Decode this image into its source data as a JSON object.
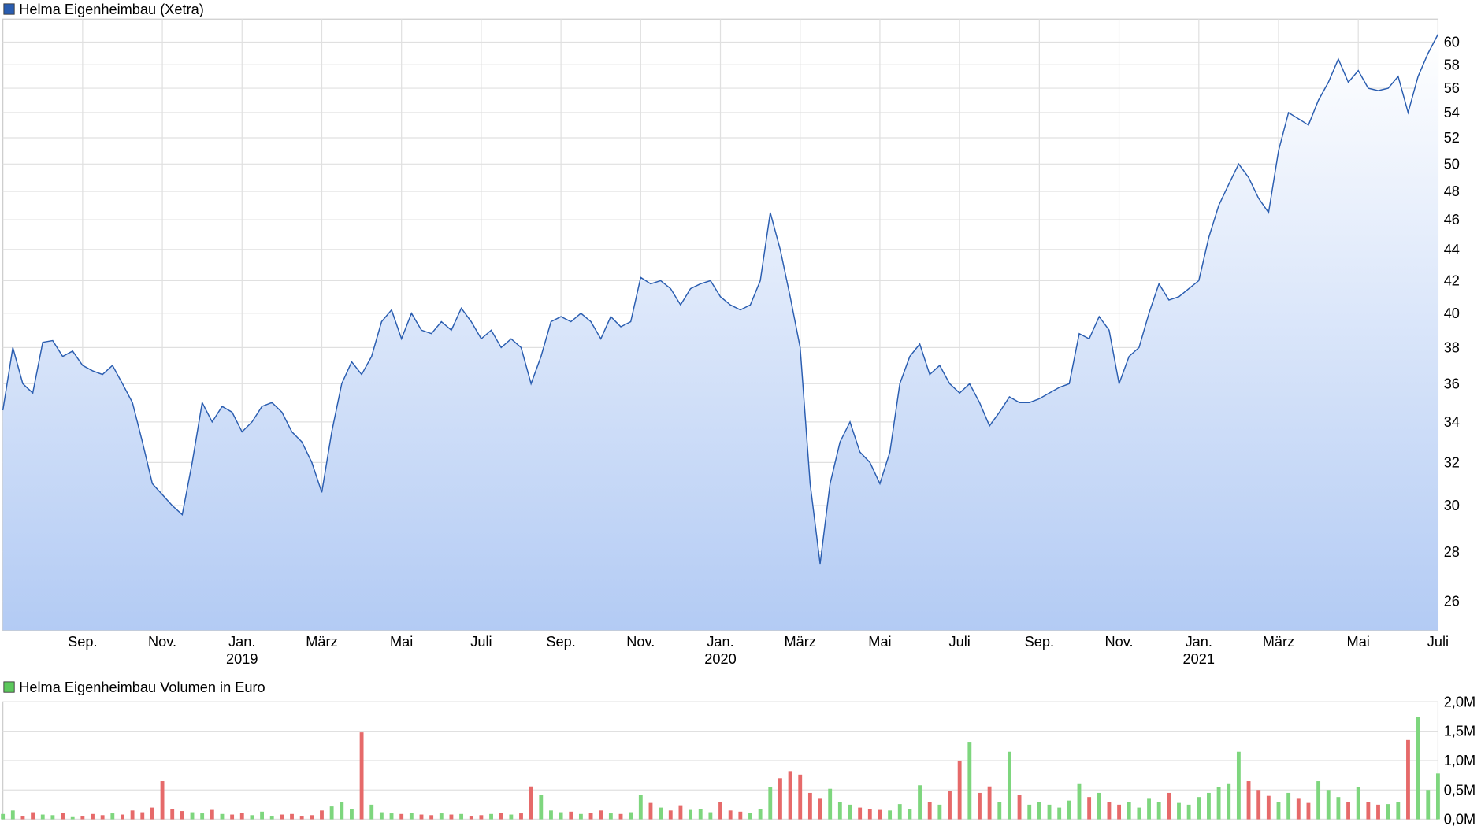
{
  "chart_data": [
    {
      "type": "area",
      "title": "Helma Eigenheimbau (Xetra)",
      "color": "#2a5db0",
      "log_scale": true,
      "grid": true,
      "x": [
        "2018-07",
        "2018-07",
        "2018-07",
        "2018-07",
        "2018-08",
        "2018-08",
        "2018-08",
        "2018-08",
        "2018-09",
        "2018-09",
        "2018-09",
        "2018-09",
        "2018-10",
        "2018-10",
        "2018-10",
        "2018-10",
        "2018-11",
        "2018-11",
        "2018-11",
        "2018-11",
        "2018-12",
        "2018-12",
        "2018-12",
        "2018-12",
        "2019-01",
        "2019-01",
        "2019-01",
        "2019-01",
        "2019-02",
        "2019-02",
        "2019-02",
        "2019-02",
        "2019-03",
        "2019-03",
        "2019-03",
        "2019-03",
        "2019-04",
        "2019-04",
        "2019-04",
        "2019-04",
        "2019-05",
        "2019-05",
        "2019-05",
        "2019-05",
        "2019-06",
        "2019-06",
        "2019-06",
        "2019-06",
        "2019-07",
        "2019-07",
        "2019-07",
        "2019-07",
        "2019-08",
        "2019-08",
        "2019-08",
        "2019-08",
        "2019-09",
        "2019-09",
        "2019-09",
        "2019-09",
        "2019-10",
        "2019-10",
        "2019-10",
        "2019-10",
        "2019-11",
        "2019-11",
        "2019-11",
        "2019-11",
        "2019-12",
        "2019-12",
        "2019-12",
        "2019-12",
        "2020-01",
        "2020-01",
        "2020-01",
        "2020-01",
        "2020-02",
        "2020-02",
        "2020-02",
        "2020-02",
        "2020-03",
        "2020-03",
        "2020-03",
        "2020-03",
        "2020-04",
        "2020-04",
        "2020-04",
        "2020-04",
        "2020-05",
        "2020-05",
        "2020-05",
        "2020-05",
        "2020-06",
        "2020-06",
        "2020-06",
        "2020-06",
        "2020-07",
        "2020-07",
        "2020-07",
        "2020-07",
        "2020-08",
        "2020-08",
        "2020-08",
        "2020-08",
        "2020-09",
        "2020-09",
        "2020-09",
        "2020-09",
        "2020-10",
        "2020-10",
        "2020-10",
        "2020-10",
        "2020-11",
        "2020-11",
        "2020-11",
        "2020-11",
        "2020-12",
        "2020-12",
        "2020-12",
        "2020-12",
        "2021-01",
        "2021-01",
        "2021-01",
        "2021-01",
        "2021-02",
        "2021-02",
        "2021-02",
        "2021-02",
        "2021-03",
        "2021-03",
        "2021-03",
        "2021-03",
        "2021-04",
        "2021-04",
        "2021-04",
        "2021-04",
        "2021-05",
        "2021-05",
        "2021-05",
        "2021-05",
        "2021-06",
        "2021-06",
        "2021-06",
        "2021-06",
        "2021-07"
      ],
      "values": [
        34.6,
        38,
        36,
        35.5,
        38.3,
        38.4,
        37.5,
        37.8,
        37,
        36.7,
        36.5,
        37,
        36,
        35,
        33,
        31,
        30.5,
        30,
        29.6,
        32,
        35,
        34,
        34.8,
        34.5,
        33.5,
        34,
        34.8,
        35,
        34.5,
        33.5,
        33,
        32,
        30.6,
        33.5,
        36,
        37.2,
        36.5,
        37.5,
        39.5,
        40.2,
        38.5,
        40,
        39,
        38.8,
        39.5,
        39,
        40.3,
        39.5,
        38.5,
        39,
        38,
        38.5,
        38,
        36,
        37.5,
        39.5,
        39.8,
        39.5,
        40,
        39.5,
        38.5,
        39.8,
        39.2,
        39.5,
        42.2,
        41.8,
        42,
        41.5,
        40.5,
        41.5,
        41.8,
        42,
        41,
        40.5,
        40.2,
        40.5,
        42,
        46.5,
        44,
        41,
        38,
        31,
        27.5,
        31,
        33,
        34,
        32.5,
        32,
        31,
        32.5,
        36,
        37.5,
        38.2,
        36.5,
        37,
        36,
        35.5,
        36,
        35,
        33.8,
        34.5,
        35.3,
        35,
        35,
        35.2,
        35.5,
        35.8,
        36,
        38.8,
        38.5,
        39.8,
        39,
        36,
        37.5,
        38,
        40,
        41.8,
        40.8,
        41,
        41.5,
        42,
        44.8,
        47,
        48.5,
        50,
        49,
        47.5,
        46.5,
        51,
        54,
        53.5,
        53,
        55,
        56.5,
        58.5,
        56.5,
        57.5,
        56,
        55.8,
        56,
        57,
        54,
        57,
        59,
        60.7
      ],
      "ylim": [
        24.9,
        62.1
      ],
      "yticks": [
        26,
        28,
        30,
        32,
        34,
        36,
        38,
        40,
        42,
        44,
        46,
        48,
        50,
        52,
        54,
        56,
        58,
        60
      ],
      "xticks": [
        {
          "value": "2018-09",
          "label": "Sep."
        },
        {
          "value": "2018-11",
          "label": "Nov."
        },
        {
          "value": "2019-01",
          "label": "Jan."
        },
        {
          "value": "2019-03",
          "label": "März"
        },
        {
          "value": "2019-05",
          "label": "Mai"
        },
        {
          "value": "2019-07",
          "label": "Juli"
        },
        {
          "value": "2019-09",
          "label": "Sep."
        },
        {
          "value": "2019-11",
          "label": "Nov."
        },
        {
          "value": "2020-01",
          "label": "Jan."
        },
        {
          "value": "2020-03",
          "label": "März"
        },
        {
          "value": "2020-05",
          "label": "Mai"
        },
        {
          "value": "2020-07",
          "label": "Juli"
        },
        {
          "value": "2020-09",
          "label": "Sep."
        },
        {
          "value": "2020-11",
          "label": "Nov."
        },
        {
          "value": "2021-01",
          "label": "Jan."
        },
        {
          "value": "2021-03",
          "label": "März"
        },
        {
          "value": "2021-05",
          "label": "Mai"
        },
        {
          "value": "2021-07",
          "label": "Juli"
        }
      ],
      "year_labels": [
        {
          "value": "2019-01",
          "label": "2019"
        },
        {
          "value": "2020-01",
          "label": "2020"
        },
        {
          "value": "2021-01",
          "label": "2021"
        }
      ]
    },
    {
      "type": "bar",
      "title": "Helma Eigenheimbau Volumen in Euro",
      "color": "#5cc85c",
      "up_color": "#7ed67e",
      "down_color": "#e66a6a",
      "grid": true,
      "x": [
        "2018-07",
        "2018-07",
        "2018-07",
        "2018-07",
        "2018-08",
        "2018-08",
        "2018-08",
        "2018-08",
        "2018-09",
        "2018-09",
        "2018-09",
        "2018-09",
        "2018-10",
        "2018-10",
        "2018-10",
        "2018-10",
        "2018-11",
        "2018-11",
        "2018-11",
        "2018-11",
        "2018-12",
        "2018-12",
        "2018-12",
        "2018-12",
        "2019-01",
        "2019-01",
        "2019-01",
        "2019-01",
        "2019-02",
        "2019-02",
        "2019-02",
        "2019-02",
        "2019-03",
        "2019-03",
        "2019-03",
        "2019-03",
        "2019-04",
        "2019-04",
        "2019-04",
        "2019-04",
        "2019-05",
        "2019-05",
        "2019-05",
        "2019-05",
        "2019-06",
        "2019-06",
        "2019-06",
        "2019-06",
        "2019-07",
        "2019-07",
        "2019-07",
        "2019-07",
        "2019-08",
        "2019-08",
        "2019-08",
        "2019-08",
        "2019-09",
        "2019-09",
        "2019-09",
        "2019-09",
        "2019-10",
        "2019-10",
        "2019-10",
        "2019-10",
        "2019-11",
        "2019-11",
        "2019-11",
        "2019-11",
        "2019-12",
        "2019-12",
        "2019-12",
        "2019-12",
        "2020-01",
        "2020-01",
        "2020-01",
        "2020-01",
        "2020-02",
        "2020-02",
        "2020-02",
        "2020-02",
        "2020-03",
        "2020-03",
        "2020-03",
        "2020-03",
        "2020-04",
        "2020-04",
        "2020-04",
        "2020-04",
        "2020-05",
        "2020-05",
        "2020-05",
        "2020-05",
        "2020-06",
        "2020-06",
        "2020-06",
        "2020-06",
        "2020-07",
        "2020-07",
        "2020-07",
        "2020-07",
        "2020-08",
        "2020-08",
        "2020-08",
        "2020-08",
        "2020-09",
        "2020-09",
        "2020-09",
        "2020-09",
        "2020-10",
        "2020-10",
        "2020-10",
        "2020-10",
        "2020-11",
        "2020-11",
        "2020-11",
        "2020-11",
        "2020-12",
        "2020-12",
        "2020-12",
        "2020-12",
        "2021-01",
        "2021-01",
        "2021-01",
        "2021-01",
        "2021-02",
        "2021-02",
        "2021-02",
        "2021-02",
        "2021-03",
        "2021-03",
        "2021-03",
        "2021-03",
        "2021-04",
        "2021-04",
        "2021-04",
        "2021-04",
        "2021-05",
        "2021-05",
        "2021-05",
        "2021-05",
        "2021-06",
        "2021-06",
        "2021-06",
        "2021-06",
        "2021-07"
      ],
      "values": [
        90000,
        150000,
        60000,
        120000,
        80000,
        70000,
        110000,
        50000,
        60000,
        90000,
        70000,
        100000,
        80000,
        150000,
        120000,
        200000,
        650000,
        180000,
        140000,
        120000,
        100000,
        160000,
        90000,
        80000,
        110000,
        70000,
        130000,
        60000,
        80000,
        90000,
        60000,
        70000,
        150000,
        220000,
        300000,
        180000,
        1480000,
        250000,
        120000,
        100000,
        90000,
        110000,
        80000,
        70000,
        100000,
        80000,
        90000,
        60000,
        70000,
        90000,
        110000,
        80000,
        100000,
        560000,
        420000,
        150000,
        120000,
        130000,
        90000,
        110000,
        150000,
        100000,
        90000,
        120000,
        420000,
        280000,
        200000,
        150000,
        240000,
        160000,
        180000,
        120000,
        300000,
        150000,
        130000,
        110000,
        180000,
        550000,
        700000,
        820000,
        760000,
        450000,
        350000,
        520000,
        300000,
        250000,
        200000,
        180000,
        160000,
        150000,
        260000,
        180000,
        580000,
        300000,
        250000,
        480000,
        1000000,
        1320000,
        450000,
        560000,
        300000,
        1150000,
        420000,
        250000,
        300000,
        250000,
        200000,
        320000,
        600000,
        380000,
        450000,
        300000,
        250000,
        300000,
        200000,
        350000,
        300000,
        450000,
        280000,
        250000,
        380000,
        450000,
        550000,
        600000,
        1150000,
        650000,
        500000,
        400000,
        300000,
        450000,
        350000,
        280000,
        650000,
        500000,
        380000,
        300000,
        550000,
        300000,
        250000,
        260000,
        300000,
        1350000,
        1750000,
        500000,
        780000
      ],
      "ylim": [
        0,
        2000000
      ],
      "yticks": [
        {
          "value": 0,
          "label": "0,0M"
        },
        {
          "value": 500000,
          "label": "0,5M"
        },
        {
          "value": 1000000,
          "label": "1,0M"
        },
        {
          "value": 1500000,
          "label": "1,5M"
        },
        {
          "value": 2000000,
          "label": "2,0M"
        }
      ]
    }
  ]
}
